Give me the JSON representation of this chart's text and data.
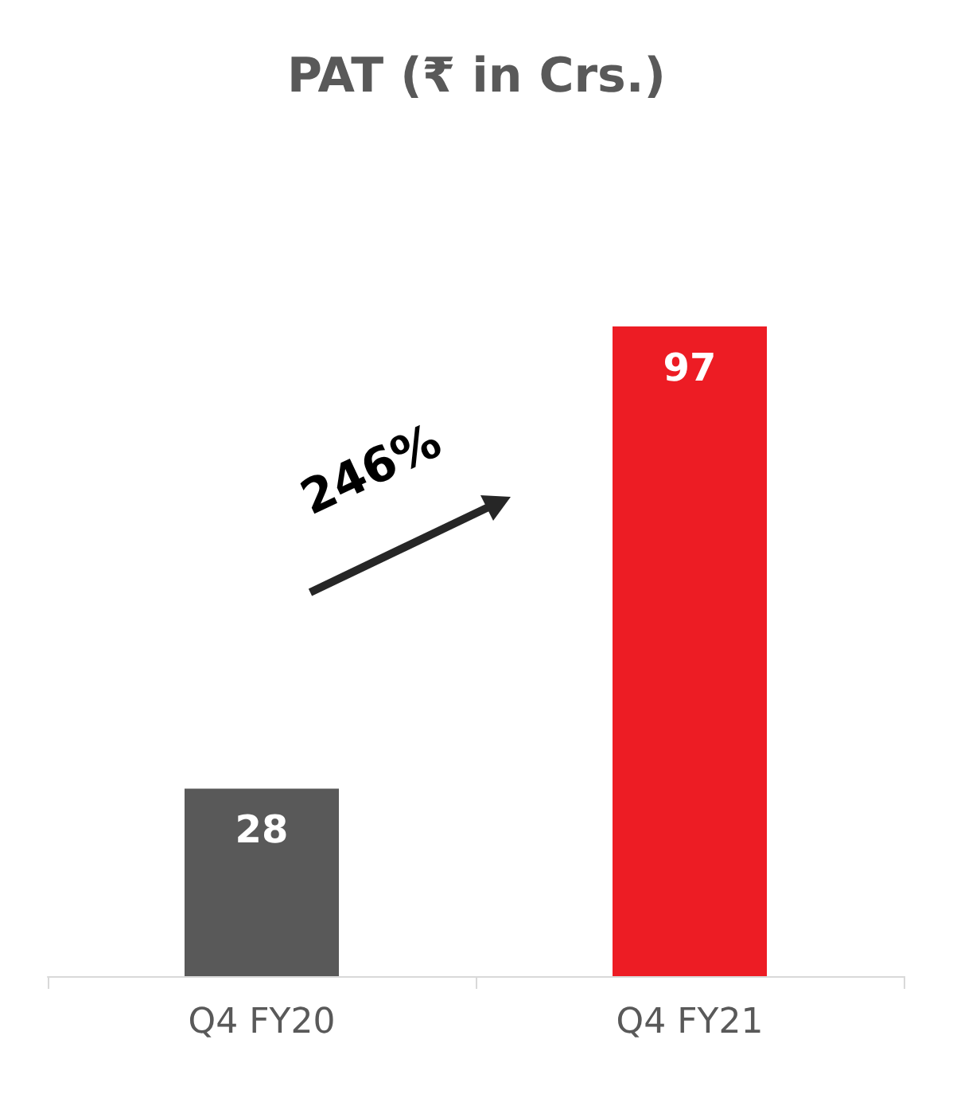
{
  "chart_data": {
    "type": "bar",
    "title": "PAT (₹ in Crs.)",
    "categories": [
      "Q4 FY20",
      "Q4 FY21"
    ],
    "values": [
      28,
      97
    ],
    "colors": [
      "#595959",
      "#ed1c24"
    ],
    "data_labels": true,
    "annotations": [
      "246%"
    ]
  }
}
